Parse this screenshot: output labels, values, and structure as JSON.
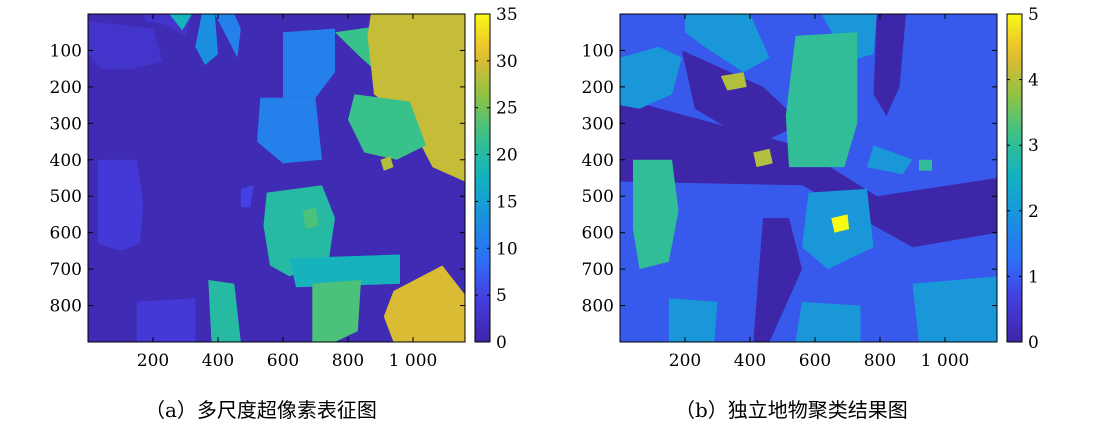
{
  "chart_data": [
    {
      "type": "heatmap",
      "caption": "（a）多尺度超像素表征图",
      "x_ticks": [
        200,
        400,
        600,
        800,
        1000
      ],
      "x_tick_labels": [
        "200",
        "400",
        "600",
        "800",
        "1 000"
      ],
      "y_ticks": [
        100,
        200,
        300,
        400,
        500,
        600,
        700,
        800
      ],
      "y_tick_labels": [
        "100",
        "200",
        "300",
        "400",
        "500",
        "600",
        "700",
        "800"
      ],
      "xlim": [
        0,
        1160
      ],
      "ylim": [
        0,
        900
      ],
      "colorbar": {
        "min": 0,
        "max": 35,
        "ticks": [
          0,
          5,
          10,
          15,
          20,
          25,
          30,
          35
        ],
        "tick_labels": [
          "0",
          "5",
          "10",
          "15",
          "20",
          "25",
          "30",
          "35"
        ]
      },
      "colormap": "parula",
      "background_value": 1,
      "regions": [
        {
          "value": 3,
          "poly": [
            [
              0,
              20
            ],
            [
              200,
              40
            ],
            [
              230,
              130
            ],
            [
              140,
              150
            ],
            [
              40,
              150
            ],
            [
              0,
              110
            ]
          ]
        },
        {
          "value": 4,
          "poly": [
            [
              30,
              400
            ],
            [
              150,
              400
            ],
            [
              170,
              520
            ],
            [
              160,
              630
            ],
            [
              100,
              650
            ],
            [
              30,
              630
            ]
          ]
        },
        {
          "value": 3,
          "poly": [
            [
              170,
              0
            ],
            [
              320,
              0
            ],
            [
              300,
              60
            ],
            [
              240,
              30
            ],
            [
              180,
              20
            ]
          ]
        },
        {
          "value": 18,
          "poly": [
            [
              250,
              0
            ],
            [
              320,
              0
            ],
            [
              290,
              45
            ]
          ]
        },
        {
          "value": 13,
          "poly": [
            [
              350,
              0
            ],
            [
              390,
              0
            ],
            [
              400,
              110
            ],
            [
              360,
              140
            ],
            [
              330,
              90
            ]
          ]
        },
        {
          "value": 11,
          "poly": [
            [
              390,
              0
            ],
            [
              450,
              0
            ],
            [
              470,
              40
            ],
            [
              460,
              120
            ]
          ]
        },
        {
          "value": 11,
          "poly": [
            [
              530,
              230
            ],
            [
              700,
              230
            ],
            [
              720,
              400
            ],
            [
              600,
              410
            ],
            [
              520,
              350
            ]
          ]
        },
        {
          "value": 11,
          "poly": [
            [
              600,
              50
            ],
            [
              760,
              40
            ],
            [
              760,
              160
            ],
            [
              700,
              230
            ],
            [
              600,
              230
            ]
          ]
        },
        {
          "value": 22,
          "poly": [
            [
              760,
              50
            ],
            [
              1160,
              0
            ],
            [
              1160,
              200
            ],
            [
              980,
              230
            ],
            [
              840,
              120
            ]
          ]
        },
        {
          "value": 29,
          "poly": [
            [
              870,
              0
            ],
            [
              1160,
              0
            ],
            [
              1160,
              460
            ],
            [
              1060,
              420
            ],
            [
              990,
              300
            ],
            [
              880,
              220
            ],
            [
              860,
              60
            ]
          ]
        },
        {
          "value": 22,
          "poly": [
            [
              820,
              220
            ],
            [
              990,
              240
            ],
            [
              1040,
              360
            ],
            [
              950,
              400
            ],
            [
              850,
              380
            ],
            [
              800,
              290
            ]
          ]
        },
        {
          "value": 28,
          "poly": [
            [
              900,
              400
            ],
            [
              930,
              390
            ],
            [
              940,
              420
            ],
            [
              910,
              430
            ]
          ]
        },
        {
          "value": 20,
          "poly": [
            [
              550,
              490
            ],
            [
              720,
              470
            ],
            [
              760,
              560
            ],
            [
              740,
              680
            ],
            [
              620,
              720
            ],
            [
              560,
              690
            ],
            [
              540,
              580
            ]
          ]
        },
        {
          "value": 18,
          "poly": [
            [
              620,
              670
            ],
            [
              960,
              660
            ],
            [
              960,
              740
            ],
            [
              640,
              750
            ]
          ]
        },
        {
          "value": 23,
          "poly": [
            [
              690,
              740
            ],
            [
              840,
              730
            ],
            [
              830,
              870
            ],
            [
              760,
              900
            ],
            [
              690,
              900
            ]
          ]
        },
        {
          "value": 30,
          "poly": [
            [
              940,
              760
            ],
            [
              1090,
              690
            ],
            [
              1160,
              770
            ],
            [
              1160,
              900
            ],
            [
              940,
              900
            ],
            [
              910,
              830
            ]
          ]
        },
        {
          "value": 20,
          "poly": [
            [
              370,
              730
            ],
            [
              450,
              740
            ],
            [
              470,
              900
            ],
            [
              380,
              900
            ]
          ]
        },
        {
          "value": 4,
          "poly": [
            [
              150,
              790
            ],
            [
              330,
              780
            ],
            [
              330,
              900
            ],
            [
              150,
              900
            ]
          ]
        },
        {
          "value": 5,
          "poly": [
            [
              470,
              480
            ],
            [
              510,
              470
            ],
            [
              500,
              530
            ],
            [
              470,
              530
            ]
          ]
        },
        {
          "value": 23,
          "poly": [
            [
              660,
              540
            ],
            [
              700,
              530
            ],
            [
              710,
              580
            ],
            [
              670,
              590
            ]
          ]
        }
      ]
    },
    {
      "type": "heatmap",
      "caption": "（b）独立地物聚类结果图",
      "x_ticks": [
        200,
        400,
        600,
        800,
        1000
      ],
      "x_tick_labels": [
        "200",
        "400",
        "600",
        "800",
        "1 000"
      ],
      "y_ticks": [
        100,
        200,
        300,
        400,
        500,
        600,
        700,
        800
      ],
      "y_tick_labels": [
        "100",
        "200",
        "300",
        "400",
        "500",
        "600",
        "700",
        "800"
      ],
      "xlim": [
        0,
        1160
      ],
      "ylim": [
        0,
        900
      ],
      "colorbar": {
        "min": 0,
        "max": 5,
        "ticks": [
          0,
          1,
          2,
          3,
          4,
          5
        ],
        "tick_labels": [
          "0",
          "1",
          "2",
          "3",
          "4",
          "5"
        ]
      },
      "colormap": "parula",
      "background_value": 1,
      "regions": [
        {
          "value": 0,
          "poly": [
            [
              0,
              230
            ],
            [
              540,
              360
            ],
            [
              790,
              500
            ],
            [
              1160,
              450
            ],
            [
              1160,
              600
            ],
            [
              900,
              640
            ],
            [
              560,
              470
            ],
            [
              0,
              460
            ]
          ]
        },
        {
          "value": 0,
          "poly": [
            [
              190,
              100
            ],
            [
              440,
              200
            ],
            [
              560,
              300
            ],
            [
              420,
              360
            ],
            [
              230,
              260
            ]
          ]
        },
        {
          "value": 0,
          "poly": [
            [
              440,
              560
            ],
            [
              520,
              560
            ],
            [
              560,
              700
            ],
            [
              460,
              900
            ],
            [
              410,
              900
            ]
          ]
        },
        {
          "value": 0,
          "poly": [
            [
              790,
              0
            ],
            [
              880,
              0
            ],
            [
              860,
              200
            ],
            [
              820,
              280
            ],
            [
              780,
              220
            ]
          ]
        },
        {
          "value": 2,
          "poly": [
            [
              0,
              120
            ],
            [
              120,
              90
            ],
            [
              190,
              120
            ],
            [
              160,
              220
            ],
            [
              60,
              260
            ],
            [
              0,
              250
            ]
          ]
        },
        {
          "value": 2,
          "poly": [
            [
              200,
              0
            ],
            [
              400,
              0
            ],
            [
              460,
              120
            ],
            [
              380,
              160
            ],
            [
              260,
              90
            ],
            [
              200,
              50
            ]
          ]
        },
        {
          "value": 2,
          "poly": [
            [
              620,
              0
            ],
            [
              790,
              0
            ],
            [
              780,
              110
            ],
            [
              700,
              130
            ]
          ]
        },
        {
          "value": 2,
          "poly": [
            [
              580,
              490
            ],
            [
              760,
              480
            ],
            [
              780,
              640
            ],
            [
              640,
              700
            ],
            [
              560,
              640
            ]
          ]
        },
        {
          "value": 2,
          "poly": [
            [
              560,
              790
            ],
            [
              740,
              800
            ],
            [
              740,
              900
            ],
            [
              540,
              900
            ]
          ]
        },
        {
          "value": 2,
          "poly": [
            [
              900,
              740
            ],
            [
              1160,
              720
            ],
            [
              1160,
              900
            ],
            [
              920,
              900
            ]
          ]
        },
        {
          "value": 2,
          "poly": [
            [
              150,
              780
            ],
            [
              300,
              790
            ],
            [
              290,
              900
            ],
            [
              150,
              900
            ]
          ]
        },
        {
          "value": 2,
          "poly": [
            [
              780,
              360
            ],
            [
              900,
              400
            ],
            [
              870,
              440
            ],
            [
              760,
              420
            ]
          ]
        },
        {
          "value": 3,
          "poly": [
            [
              540,
              60
            ],
            [
              730,
              50
            ],
            [
              730,
              300
            ],
            [
              690,
              420
            ],
            [
              520,
              420
            ],
            [
              510,
              280
            ]
          ]
        },
        {
          "value": 3,
          "poly": [
            [
              40,
              400
            ],
            [
              160,
              400
            ],
            [
              180,
              540
            ],
            [
              150,
              680
            ],
            [
              60,
              700
            ],
            [
              40,
              590
            ]
          ]
        },
        {
          "value": 3,
          "poly": [
            [
              920,
              400
            ],
            [
              960,
              400
            ],
            [
              960,
              430
            ],
            [
              920,
              430
            ]
          ]
        },
        {
          "value": 4,
          "poly": [
            [
              310,
              170
            ],
            [
              380,
              160
            ],
            [
              390,
              200
            ],
            [
              330,
              210
            ]
          ]
        },
        {
          "value": 4,
          "poly": [
            [
              410,
              380
            ],
            [
              460,
              370
            ],
            [
              470,
              410
            ],
            [
              420,
              420
            ]
          ]
        },
        {
          "value": 5,
          "poly": [
            [
              650,
              560
            ],
            [
              700,
              550
            ],
            [
              705,
              590
            ],
            [
              660,
              600
            ]
          ]
        }
      ]
    }
  ]
}
